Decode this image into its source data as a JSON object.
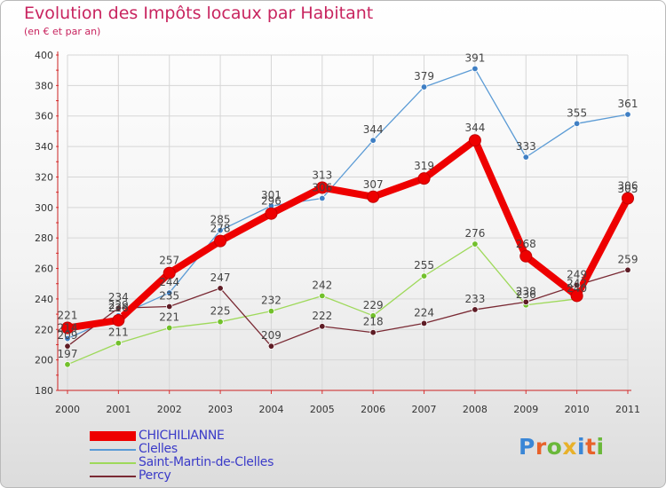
{
  "title": "Evolution des Impôts locaux par Habitant",
  "subtitle": "(en € et par an)",
  "logo": {
    "text": "Proxiti",
    "letter_colors": [
      "#3a86d6",
      "#e8622a",
      "#6ab83a",
      "#e8b12a",
      "#3a86d6",
      "#e8622a",
      "#6ab83a"
    ]
  },
  "chart_data": {
    "type": "line",
    "x": [
      "2000",
      "2001",
      "2002",
      "2003",
      "2004",
      "2005",
      "2006",
      "2007",
      "2008",
      "2009",
      "2010",
      "2011"
    ],
    "y_ticks": [
      "180",
      "200",
      "220",
      "240",
      "260",
      "280",
      "300",
      "320",
      "340",
      "360",
      "380",
      "400"
    ],
    "ylim": [
      180,
      400
    ],
    "series": [
      {
        "name": "Clelles",
        "color": "#5b9bd5",
        "point": "#3f7fc4",
        "values": [
          214,
          229,
          244,
          285,
          301,
          306,
          344,
          379,
          391,
          333,
          355,
          361
        ],
        "labels": [
          "214",
          "229",
          "244",
          "285",
          "301",
          "306",
          "344",
          "379",
          "391",
          "333",
          "355",
          "361"
        ]
      },
      {
        "name": "Saint-Martin-de-Clelles",
        "color": "#9ed95a",
        "point": "#72c02c",
        "values": [
          197,
          211,
          221,
          225,
          232,
          242,
          229,
          255,
          276,
          236,
          240,
          305
        ],
        "labels": [
          "197",
          "211",
          "221",
          "225",
          "232",
          "242",
          "229",
          "255",
          "276",
          "236",
          "240",
          "305"
        ]
      },
      {
        "name": "Percy",
        "color": "#7a2a34",
        "point": "#5e1c25",
        "values": [
          209,
          234,
          235,
          247,
          209,
          222,
          218,
          224,
          233,
          238,
          249,
          259
        ],
        "labels": [
          "209",
          "234",
          "235",
          "247",
          "209",
          "222",
          "218",
          "224",
          "233",
          "238",
          "249",
          "259"
        ]
      },
      {
        "name": "CHICHILIANNE",
        "color": "#ee0000",
        "point": "#ee0000",
        "values": [
          221,
          226,
          257,
          278,
          296,
          313,
          307,
          319,
          344,
          268,
          242,
          306
        ],
        "labels": [
          "221",
          "226",
          "257",
          "278",
          "296",
          "313",
          "307",
          "319",
          "344",
          "268",
          "242",
          "306"
        ],
        "bold": true
      }
    ],
    "legend": [
      {
        "name": "CHICHILIANNE",
        "color": "#ee0000"
      },
      {
        "name": "Clelles",
        "color": "#5b9bd5"
      },
      {
        "name": "Saint-Martin-de-Clelles",
        "color": "#9ed95a"
      },
      {
        "name": "Percy",
        "color": "#7a2a34"
      }
    ]
  }
}
